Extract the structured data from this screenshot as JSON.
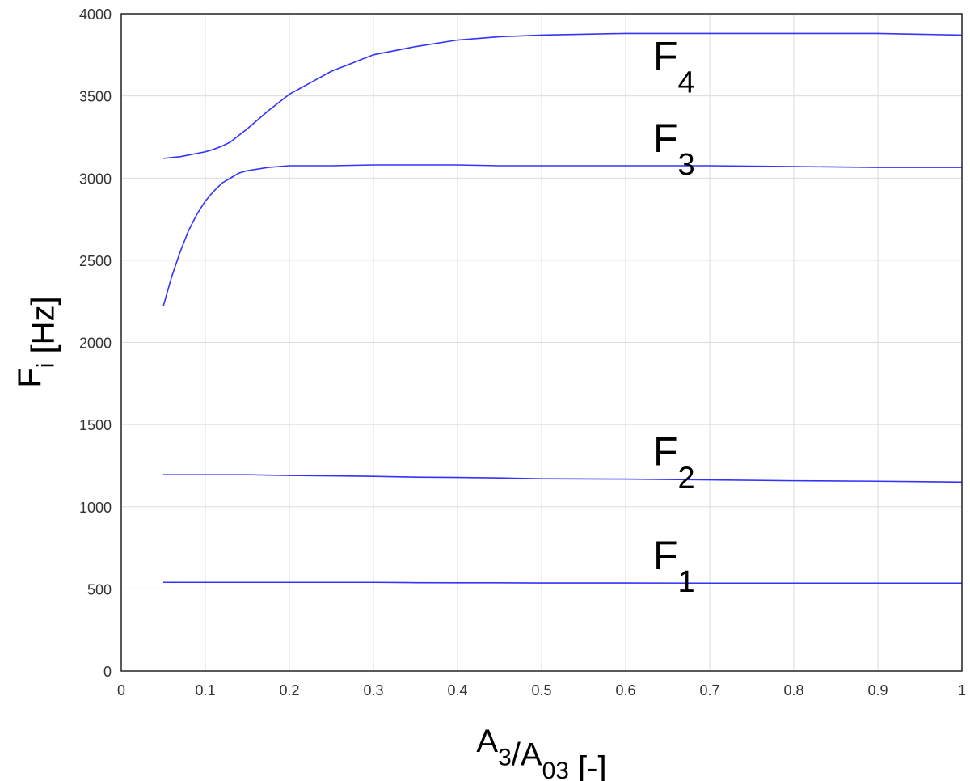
{
  "chart_data": {
    "type": "line",
    "xlabel": [
      {
        "text": "A",
        "sub": "3"
      },
      {
        "text": "/A",
        "sub": "03"
      },
      {
        "text": " [-]"
      }
    ],
    "ylabel": [
      {
        "text": "F",
        "sub": "i"
      },
      {
        "text": " [Hz]"
      }
    ],
    "x": [
      0.05,
      0.06,
      0.07,
      0.08,
      0.09,
      0.1,
      0.11,
      0.12,
      0.13,
      0.14,
      0.15,
      0.175,
      0.2,
      0.25,
      0.3,
      0.35,
      0.4,
      0.45,
      0.5,
      0.6,
      0.7,
      0.8,
      0.9,
      1
    ],
    "series": [
      {
        "label": {
          "text": "F",
          "sub": "1"
        },
        "color": "#3333ff",
        "values": [
          540,
          540,
          540,
          540,
          540,
          540,
          540,
          540,
          540,
          540,
          540,
          540,
          540,
          540,
          540,
          538,
          537,
          537,
          536,
          536,
          535,
          535,
          535,
          535
        ]
      },
      {
        "label": {
          "text": "F",
          "sub": "2"
        },
        "color": "#3333ff",
        "values": [
          1195,
          1195,
          1195,
          1195,
          1195,
          1195,
          1195,
          1195,
          1195,
          1195,
          1195,
          1192,
          1190,
          1188,
          1185,
          1180,
          1178,
          1175,
          1170,
          1168,
          1163,
          1158,
          1155,
          1150
        ]
      },
      {
        "label": {
          "text": "F",
          "sub": "3"
        },
        "color": "#3333ff",
        "values": [
          2220,
          2400,
          2550,
          2680,
          2780,
          2860,
          2920,
          2970,
          3000,
          3030,
          3045,
          3065,
          3075,
          3075,
          3080,
          3080,
          3080,
          3075,
          3075,
          3075,
          3075,
          3070,
          3065,
          3065
        ]
      },
      {
        "label": {
          "text": "F",
          "sub": "4"
        },
        "color": "#3333ff",
        "values": [
          3120,
          3125,
          3130,
          3140,
          3150,
          3160,
          3175,
          3195,
          3220,
          3260,
          3300,
          3410,
          3510,
          3650,
          3750,
          3800,
          3840,
          3860,
          3870,
          3880,
          3880,
          3880,
          3880,
          3870
        ]
      }
    ],
    "xlim": [
      0,
      1
    ],
    "xticks": [
      0,
      0.1,
      0.2,
      0.3,
      0.4,
      0.5,
      0.6,
      0.7,
      0.8,
      0.9,
      1
    ],
    "ylim": [
      0,
      4000
    ],
    "yticks": [
      0,
      500,
      1000,
      1500,
      2000,
      2500,
      3000,
      3500,
      4000
    ],
    "grid": true
  }
}
